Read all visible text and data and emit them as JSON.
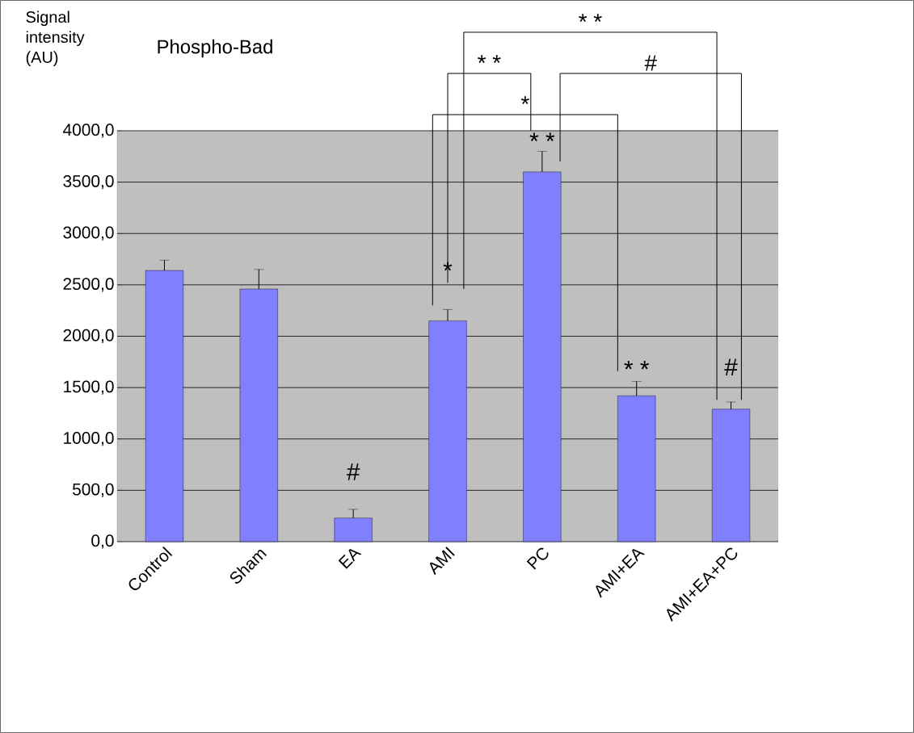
{
  "chart_data": {
    "type": "bar",
    "title": "Phospho-Bad",
    "ylabel": "Signal intensity (AU)",
    "categories": [
      "Control",
      "Sham",
      "EA",
      "AMI",
      "PC",
      "AMI+EA",
      "AMI+EA+PC"
    ],
    "values": [
      2640,
      2460,
      230,
      2150,
      3600,
      1420,
      1290
    ],
    "errors": [
      100,
      190,
      85,
      110,
      200,
      140,
      70
    ],
    "color": "#8080ff",
    "ylim": [
      0,
      4000
    ],
    "yticks": [
      {
        "value": 0,
        "label": "0,0"
      },
      {
        "value": 500,
        "label": "500,0"
      },
      {
        "value": 1000,
        "label": "1000,0"
      },
      {
        "value": 1500,
        "label": "1500,0"
      },
      {
        "value": 2000,
        "label": "2000,0"
      },
      {
        "value": 2500,
        "label": "2500,0"
      },
      {
        "value": 3000,
        "label": "3000,0"
      },
      {
        "value": 3500,
        "label": "3500,0"
      },
      {
        "value": 4000,
        "label": "4000,0"
      }
    ],
    "grid": "y",
    "annotations": [
      "#",
      "*",
      "* *",
      "* *",
      "#",
      "*",
      "* *",
      "#",
      "* *"
    ]
  }
}
